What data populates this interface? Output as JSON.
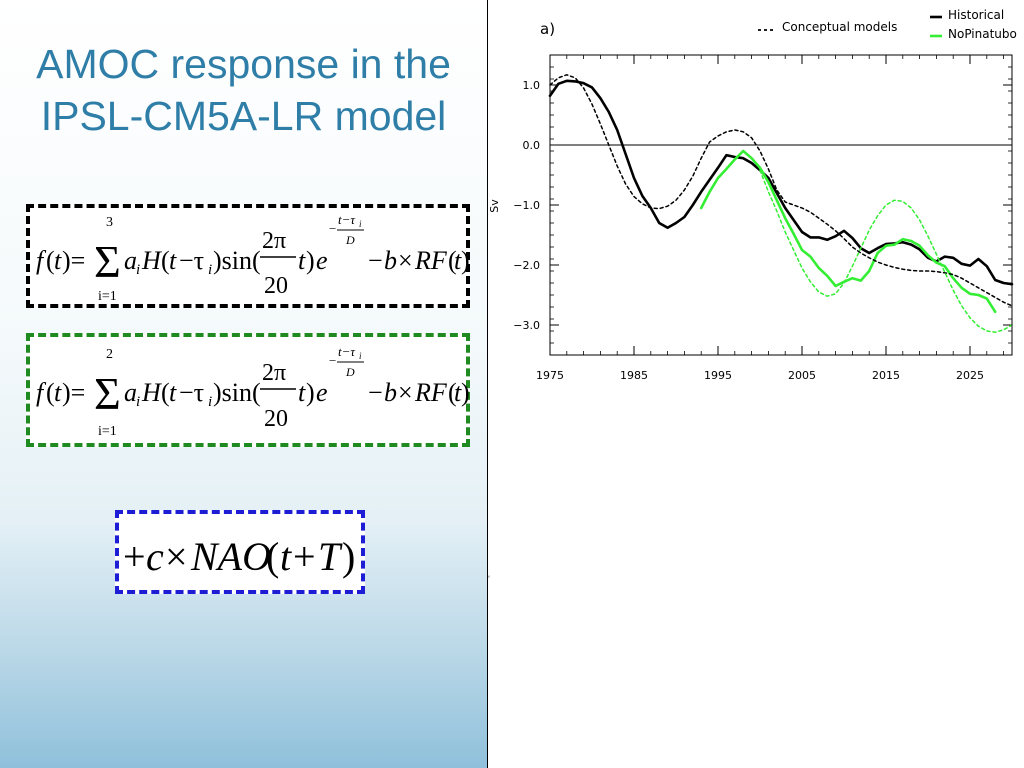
{
  "slide": {
    "title_lines": [
      "AMOC response in the",
      "IPSL-CM5A-LR model"
    ]
  },
  "equations": [
    {
      "id": "eq1",
      "sum_upper": "3",
      "sum_lower": "i=1",
      "border_color": "#000000",
      "text": "f(t) = Σ_{i=1}^{3} a_i H(t−τ_i) sin(2π/20 t) e^{−(t−τ_i)/D} − b×RF(t)"
    },
    {
      "id": "eq2",
      "sum_upper": "2",
      "sum_lower": "i=1",
      "border_color": "#1f8a1f",
      "text": "f(t) = Σ_{i=1}^{2} a_i H(t−τ_i) sin(2π/20 t) e^{−(t−τ_i)/D} − b×RF(t)"
    },
    {
      "id": "eq3",
      "border_color": "#1d1dd6",
      "text": "+c×NAO(t+T)"
    }
  ],
  "chart_data": {
    "type": "line",
    "panel_label": "a)",
    "ylabel": "Sv",
    "xlim": [
      1975,
      2030
    ],
    "ylim": [
      -3.5,
      1.5
    ],
    "xticks": [
      1975,
      1985,
      1995,
      2005,
      2015,
      2025
    ],
    "yticks": [
      1.0,
      0.0,
      -1.0,
      -2.0,
      -3.0
    ],
    "ytick_labels": [
      "1.0",
      "0.0",
      "−1.0",
      "−2.0",
      "−3.0"
    ],
    "zero_line": true,
    "legend": {
      "placement": "top",
      "entries": [
        {
          "label": "Conceptual models",
          "color": "#000000",
          "style": "dotted"
        },
        {
          "label": "Historical",
          "color": "#000000",
          "style": "solid"
        },
        {
          "label": "NoPinatubo",
          "color": "#33ee33",
          "style": "solid"
        }
      ]
    },
    "series": [
      {
        "name": "Historical",
        "color": "#000000",
        "style": "solid",
        "width": 2.6,
        "x": [
          1975,
          1976,
          1977,
          1978,
          1979,
          1980,
          1981,
          1982,
          1983,
          1984,
          1985,
          1986,
          1987,
          1988,
          1989,
          1990,
          1991,
          1992,
          1993,
          1994,
          1995,
          1996,
          1997,
          1998,
          1999,
          2000,
          2001,
          2002,
          2003,
          2004,
          2005,
          2006,
          2007,
          2008,
          2009,
          2010,
          2011,
          2012,
          2013,
          2014,
          2015,
          2016,
          2017,
          2018,
          2019,
          2020,
          2021,
          2022,
          2023,
          2024,
          2025,
          2026,
          2027,
          2028,
          2029,
          2030
        ],
        "y": [
          0.82,
          1.02,
          1.07,
          1.06,
          1.03,
          0.96,
          0.78,
          0.55,
          0.25,
          -0.15,
          -0.55,
          -0.85,
          -1.05,
          -1.3,
          -1.38,
          -1.3,
          -1.2,
          -1.0,
          -0.78,
          -0.58,
          -0.38,
          -0.17,
          -0.2,
          -0.22,
          -0.3,
          -0.42,
          -0.55,
          -0.8,
          -1.05,
          -1.25,
          -1.45,
          -1.54,
          -1.54,
          -1.58,
          -1.52,
          -1.43,
          -1.55,
          -1.72,
          -1.8,
          -1.72,
          -1.65,
          -1.64,
          -1.62,
          -1.66,
          -1.74,
          -1.88,
          -1.94,
          -1.86,
          -1.88,
          -1.98,
          -2.01,
          -1.9,
          -2.02,
          -2.25,
          -2.3,
          -2.32
        ]
      },
      {
        "name": "NoPinatubo",
        "color": "#33ee33",
        "style": "solid",
        "width": 2.6,
        "x": [
          1993,
          1994,
          1995,
          1996,
          1997,
          1998,
          1999,
          2000,
          2001,
          2002,
          2003,
          2004,
          2005,
          2006,
          2007,
          2008,
          2009,
          2010,
          2011,
          2012,
          2013,
          2014,
          2015,
          2016,
          2017,
          2018,
          2019,
          2020,
          2021,
          2022,
          2023,
          2024,
          2025,
          2026,
          2027,
          2028
        ],
        "y": [
          -1.05,
          -0.78,
          -0.55,
          -0.4,
          -0.24,
          -0.1,
          -0.22,
          -0.38,
          -0.62,
          -0.92,
          -1.22,
          -1.48,
          -1.75,
          -1.86,
          -2.05,
          -2.18,
          -2.35,
          -2.28,
          -2.22,
          -2.26,
          -2.1,
          -1.8,
          -1.68,
          -1.66,
          -1.57,
          -1.6,
          -1.68,
          -1.84,
          -1.96,
          -2.02,
          -2.22,
          -2.38,
          -2.48,
          -2.5,
          -2.56,
          -2.78
        ]
      },
      {
        "name": "Historical (conceptual model)",
        "color": "#000000",
        "style": "dotted",
        "width": 1.5,
        "x": [
          1975,
          1976,
          1977,
          1978,
          1979,
          1980,
          1981,
          1982,
          1983,
          1984,
          1985,
          1986,
          1987,
          1988,
          1989,
          1990,
          1991,
          1992,
          1993,
          1994,
          1995,
          1996,
          1997,
          1998,
          1999,
          2000,
          2001,
          2002,
          2003,
          2004,
          2005,
          2006,
          2007,
          2008,
          2009,
          2010,
          2011,
          2012,
          2013,
          2014,
          2015,
          2016,
          2017,
          2018,
          2019,
          2020,
          2021,
          2022,
          2023,
          2024,
          2025,
          2026,
          2027,
          2028,
          2029,
          2030
        ],
        "y": [
          1.0,
          1.12,
          1.17,
          1.12,
          0.95,
          0.68,
          0.35,
          0.0,
          -0.35,
          -0.65,
          -0.86,
          -0.98,
          -1.05,
          -1.06,
          -1.02,
          -0.92,
          -0.75,
          -0.52,
          -0.22,
          0.05,
          0.15,
          0.22,
          0.25,
          0.22,
          0.12,
          -0.1,
          -0.4,
          -0.75,
          -0.95,
          -1.0,
          -1.05,
          -1.12,
          -1.22,
          -1.32,
          -1.43,
          -1.56,
          -1.7,
          -1.8,
          -1.88,
          -1.95,
          -2.0,
          -2.04,
          -2.07,
          -2.09,
          -2.1,
          -2.1,
          -2.11,
          -2.13,
          -2.16,
          -2.22,
          -2.3,
          -2.38,
          -2.46,
          -2.54,
          -2.62,
          -2.68
        ]
      },
      {
        "name": "NoPinatubo (conceptual model)",
        "color": "#33ee33",
        "style": "dotted",
        "width": 1.5,
        "x": [
          2000,
          2001,
          2002,
          2003,
          2004,
          2005,
          2006,
          2007,
          2008,
          2009,
          2010,
          2011,
          2012,
          2013,
          2014,
          2015,
          2016,
          2017,
          2018,
          2019,
          2020,
          2021,
          2022,
          2023,
          2024,
          2025,
          2026,
          2027,
          2028,
          2029,
          2030
        ],
        "y": [
          -0.42,
          -0.78,
          -1.1,
          -1.45,
          -1.75,
          -2.05,
          -2.28,
          -2.45,
          -2.52,
          -2.48,
          -2.3,
          -2.02,
          -1.72,
          -1.42,
          -1.18,
          -1.0,
          -0.92,
          -0.94,
          -1.05,
          -1.25,
          -1.52,
          -1.82,
          -2.12,
          -2.42,
          -2.68,
          -2.88,
          -3.02,
          -3.1,
          -3.12,
          -3.08,
          -3.0
        ]
      }
    ]
  }
}
